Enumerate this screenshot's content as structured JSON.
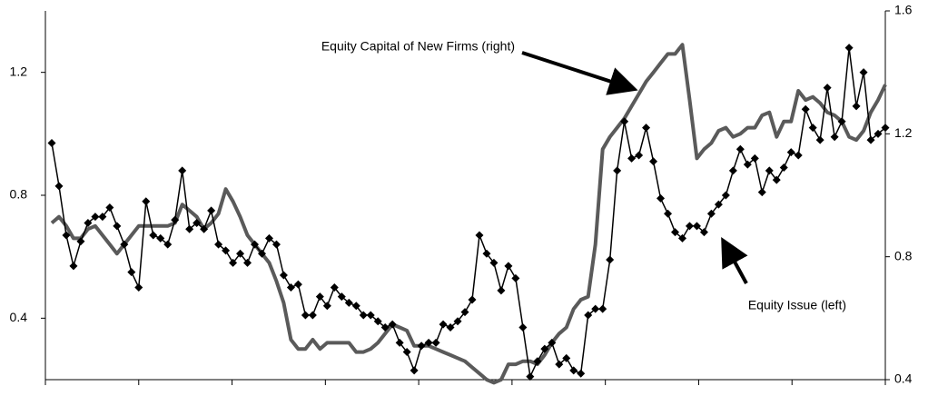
{
  "chart_data": {
    "type": "line",
    "series": [
      {
        "color": "#000000",
        "marker": "diamond",
        "axis": "y",
        "values": [
          0.97,
          0.83,
          0.67,
          0.57,
          0.65,
          0.71,
          0.73,
          0.73,
          0.76,
          0.7,
          0.64,
          0.55,
          0.5,
          0.78,
          0.67,
          0.66,
          0.64,
          0.72,
          0.88,
          0.69,
          0.71,
          0.69,
          0.75,
          0.64,
          0.62,
          0.58,
          0.61,
          0.58,
          0.64,
          0.61,
          0.66,
          0.64,
          0.54,
          0.5,
          0.51,
          0.41,
          0.41,
          0.47,
          0.44,
          0.5,
          0.47,
          0.45,
          0.44,
          0.41,
          0.41,
          0.39,
          0.37,
          0.38,
          0.32,
          0.29,
          0.23,
          0.31,
          0.32,
          0.32,
          0.38,
          0.37,
          0.39,
          0.42,
          0.46,
          0.67,
          0.61,
          0.58,
          0.49,
          0.57,
          0.53,
          0.37,
          0.21,
          0.26,
          0.3,
          0.32,
          0.25,
          0.27,
          0.23,
          0.22,
          0.41,
          0.43,
          0.43,
          0.59,
          0.88,
          1.04,
          0.92,
          0.93,
          1.02,
          0.91,
          0.79,
          0.74,
          0.68,
          0.66,
          0.7,
          0.7,
          0.68,
          0.74,
          0.77,
          0.8,
          0.88,
          0.95,
          0.9,
          0.92,
          0.81,
          0.88,
          0.85,
          0.89,
          0.94,
          0.93,
          1.08,
          1.02,
          0.98,
          1.15,
          0.99,
          1.04,
          1.28,
          1.09,
          1.2,
          0.98,
          1.0,
          1.02
        ]
      },
      {
        "color": "#5a5a5a",
        "axis": "y2",
        "values": [
          0.91,
          0.93,
          0.9,
          0.86,
          0.86,
          0.89,
          0.9,
          0.87,
          0.84,
          0.81,
          0.84,
          0.87,
          0.9,
          0.9,
          0.9,
          0.9,
          0.9,
          0.91,
          0.97,
          0.95,
          0.93,
          0.89,
          0.91,
          0.94,
          1.02,
          0.98,
          0.93,
          0.87,
          0.84,
          0.81,
          0.78,
          0.72,
          0.65,
          0.53,
          0.5,
          0.5,
          0.53,
          0.5,
          0.52,
          0.52,
          0.52,
          0.52,
          0.49,
          0.49,
          0.5,
          0.52,
          0.55,
          0.58,
          0.57,
          0.56,
          0.51,
          0.51,
          0.51,
          0.5,
          0.49,
          0.48,
          0.47,
          0.46,
          0.44,
          0.42,
          0.4,
          0.39,
          0.4,
          0.45,
          0.45,
          0.46,
          0.46,
          0.45,
          0.48,
          0.52,
          0.55,
          0.57,
          0.63,
          0.66,
          0.67,
          0.84,
          1.15,
          1.19,
          1.22,
          1.25,
          1.29,
          1.33,
          1.37,
          1.4,
          1.43,
          1.46,
          1.46,
          1.49,
          1.31,
          1.12,
          1.15,
          1.17,
          1.21,
          1.22,
          1.19,
          1.2,
          1.22,
          1.22,
          1.26,
          1.27,
          1.19,
          1.24,
          1.24,
          1.34,
          1.31,
          1.32,
          1.3,
          1.27,
          1.26,
          1.24,
          1.19,
          1.18,
          1.21,
          1.27,
          1.31,
          1.36
        ]
      }
    ],
    "ylim": [
      0.2,
      1.4
    ],
    "yticks": [
      0.4,
      0.8,
      1.2
    ],
    "y2lim": [
      0.4,
      1.6
    ],
    "y2ticks": [
      0.4,
      0.8,
      1.2,
      1.6
    ],
    "annotations": [
      "Equity Capital of New Firms (right)",
      "Equity Issue (left)"
    ]
  }
}
